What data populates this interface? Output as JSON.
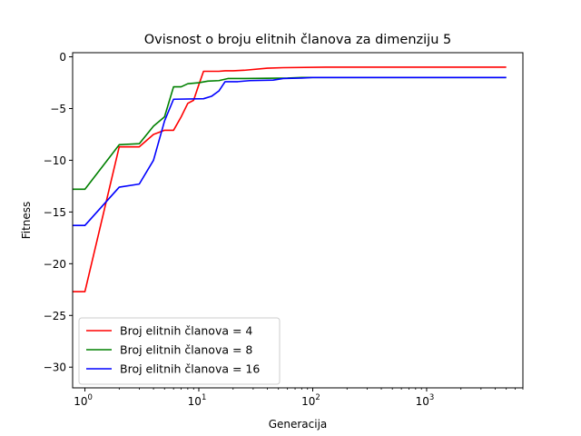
{
  "chart_data": {
    "type": "line",
    "title": "Ovisnost o broju elitnih članova za dimenziju 5",
    "xlabel": "Generacija",
    "ylabel": "Fitness",
    "xscale": "log",
    "xlim": [
      0.78,
      7000
    ],
    "ylim": [
      -32,
      0.4
    ],
    "xticks": [
      {
        "value": 1,
        "base": "10",
        "exp": "0"
      },
      {
        "value": 10,
        "base": "10",
        "exp": "1"
      },
      {
        "value": 100,
        "base": "10",
        "exp": "2"
      },
      {
        "value": 1000,
        "base": "10",
        "exp": "3"
      }
    ],
    "yticks": [
      0,
      -5,
      -10,
      -15,
      -20,
      -25,
      -30
    ],
    "yticklabels": [
      "0",
      "−5",
      "−10",
      "−15",
      "−20",
      "−25",
      "−30"
    ],
    "grid": false,
    "legend_position": "lower-left",
    "series": [
      {
        "name": "Broj elitnih članova = 4",
        "color": "#ff0000",
        "points": [
          [
            0.5,
            -22.7
          ],
          [
            1,
            -22.7
          ],
          [
            2,
            -8.7
          ],
          [
            3,
            -8.7
          ],
          [
            4,
            -7.5
          ],
          [
            5,
            -7.1
          ],
          [
            6,
            -7.1
          ],
          [
            7,
            -5.8
          ],
          [
            8,
            -4.5
          ],
          [
            9,
            -4.2
          ],
          [
            10,
            -2.7
          ],
          [
            11,
            -1.4
          ],
          [
            15,
            -1.4
          ],
          [
            17,
            -1.35
          ],
          [
            20,
            -1.35
          ],
          [
            25,
            -1.3
          ],
          [
            40,
            -1.1
          ],
          [
            55,
            -1.05
          ],
          [
            130,
            -1.0
          ],
          [
            5000,
            -1.0
          ]
        ]
      },
      {
        "name": "Broj elitnih članova = 8",
        "color": "#008000",
        "points": [
          [
            0.5,
            -12.8
          ],
          [
            1,
            -12.8
          ],
          [
            2,
            -8.5
          ],
          [
            3,
            -8.4
          ],
          [
            4,
            -6.7
          ],
          [
            5,
            -5.8
          ],
          [
            6,
            -2.9
          ],
          [
            7,
            -2.9
          ],
          [
            8,
            -2.6
          ],
          [
            10,
            -2.5
          ],
          [
            12,
            -2.35
          ],
          [
            15,
            -2.3
          ],
          [
            18,
            -2.1
          ],
          [
            25,
            -2.1
          ],
          [
            60,
            -2.05
          ],
          [
            80,
            -2.0
          ],
          [
            5000,
            -2.0
          ]
        ]
      },
      {
        "name": "Broj elitnih članova = 16",
        "color": "#0000ff",
        "points": [
          [
            0.5,
            -16.3
          ],
          [
            1,
            -16.3
          ],
          [
            2,
            -12.6
          ],
          [
            3,
            -12.3
          ],
          [
            4,
            -10.0
          ],
          [
            5,
            -6.2
          ],
          [
            6,
            -4.1
          ],
          [
            11,
            -4.05
          ],
          [
            13,
            -3.8
          ],
          [
            15,
            -3.3
          ],
          [
            17,
            -2.4
          ],
          [
            22,
            -2.4
          ],
          [
            28,
            -2.3
          ],
          [
            45,
            -2.25
          ],
          [
            55,
            -2.1
          ],
          [
            80,
            -2.05
          ],
          [
            100,
            -2.0
          ],
          [
            5000,
            -2.0
          ]
        ]
      }
    ]
  }
}
